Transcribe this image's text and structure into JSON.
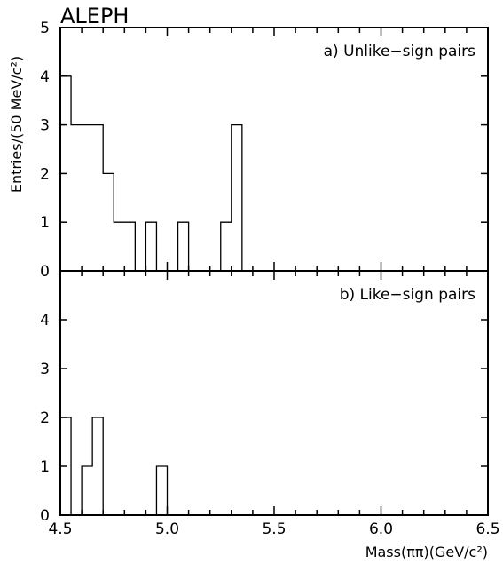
{
  "experiment_label": "ALEPH",
  "chart_data": [
    {
      "type": "bar",
      "histogram": true,
      "panel_label": "a) Unlike−sign pairs",
      "bin_width": 0.05,
      "bin_edges": [
        4.5,
        4.55,
        4.6,
        4.65,
        4.7,
        4.75,
        4.8,
        4.85,
        4.9,
        4.95,
        5.0,
        5.05,
        5.1,
        5.15,
        5.2,
        5.25,
        5.3,
        5.35
      ],
      "values": [
        4,
        3,
        3,
        3,
        2,
        1,
        1,
        0,
        1,
        0,
        0,
        1,
        0,
        0,
        0,
        1,
        3
      ],
      "xlim": [
        4.5,
        6.5
      ],
      "ylim": [
        0,
        5
      ],
      "yticks": [
        "0",
        "1",
        "2",
        "3",
        "4",
        "5"
      ],
      "ylabel": "Entries/(50 MeV/c²)"
    },
    {
      "type": "bar",
      "histogram": true,
      "panel_label": "b) Like−sign pairs",
      "bin_width": 0.05,
      "bin_edges": [
        4.5,
        4.55,
        4.6,
        4.65,
        4.7,
        4.75,
        4.8,
        4.85,
        4.9,
        4.95,
        5.0
      ],
      "values": [
        2,
        0,
        1,
        2,
        0,
        0,
        0,
        0,
        0,
        1
      ],
      "xlim": [
        4.5,
        6.5
      ],
      "ylim": [
        0,
        5
      ],
      "yticks": [
        "0",
        "1",
        "2",
        "3",
        "4"
      ],
      "xticks": [
        "4.5",
        "5.0",
        "5.5",
        "6.0",
        "6.5"
      ],
      "xlabel": "Mass(ππ)(GeV/c²)"
    }
  ]
}
